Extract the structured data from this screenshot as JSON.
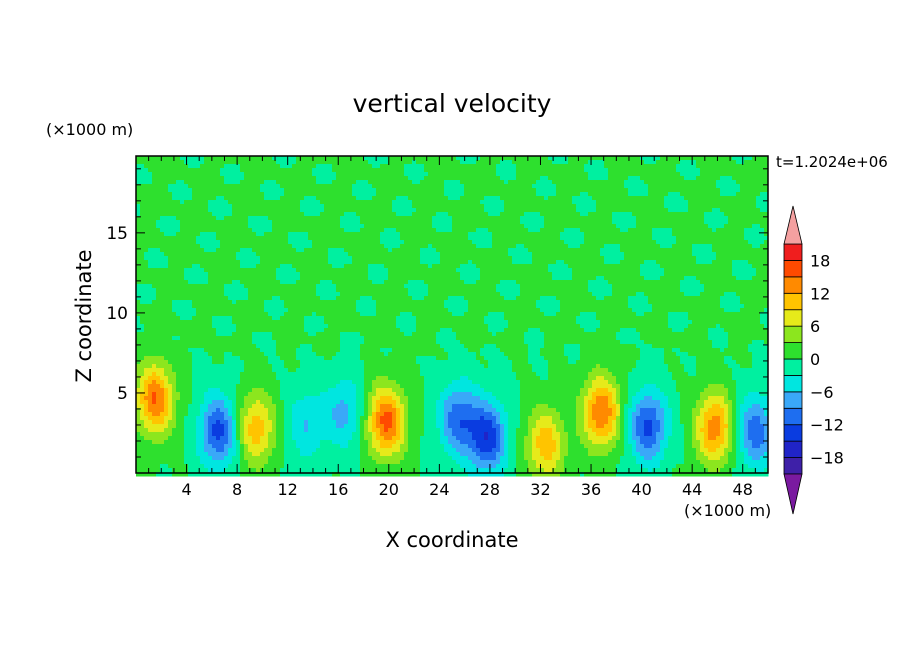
{
  "chart_data": {
    "type": "heatmap",
    "title": "vertical velocity",
    "xlabel": "X coordinate",
    "ylabel": "Z coordinate",
    "x_unit": "(×1000 m)",
    "y_unit": "(×1000 m)",
    "time_label": "t=1.2024e+06",
    "xlim": [
      0,
      50
    ],
    "ylim": [
      0,
      19.8
    ],
    "x_ticks": [
      "4",
      "8",
      "12",
      "16",
      "20",
      "24",
      "28",
      "32",
      "36",
      "40",
      "44",
      "48"
    ],
    "y_ticks": [
      "5",
      "10",
      "15"
    ],
    "colorbar_labels": [
      "18",
      "12",
      "6",
      "0",
      "−6",
      "−12",
      "−18"
    ],
    "colorbar_levels": [
      -21,
      -18,
      -15,
      -12,
      -9,
      -6,
      -3,
      0,
      3,
      6,
      9,
      12,
      15,
      18,
      21
    ],
    "colors": [
      "#7a1aa0",
      "#3e20a8",
      "#2024c8",
      "#0a3ce0",
      "#1e6ef0",
      "#3aa8f8",
      "#00e6e0",
      "#00f0a0",
      "#2ee02e",
      "#8ce61e",
      "#e6ea1a",
      "#ffc400",
      "#ff8a00",
      "#ff4a00",
      "#f01e1e",
      "#f4a0a0"
    ],
    "features": [
      {
        "x": 1.5,
        "z": 4.6,
        "w": 15
      },
      {
        "x": 6.5,
        "z": 2.6,
        "w": -13
      },
      {
        "x": 9.5,
        "z": 2.8,
        "w": 11
      },
      {
        "x": 13.5,
        "z": 3.0,
        "w": -6
      },
      {
        "x": 16.5,
        "z": 3.8,
        "w": -7
      },
      {
        "x": 19.8,
        "z": 3.2,
        "w": 16
      },
      {
        "x": 25.5,
        "z": 3.4,
        "w": -11
      },
      {
        "x": 27.8,
        "z": 2.2,
        "w": -14
      },
      {
        "x": 32.4,
        "z": 1.8,
        "w": 11
      },
      {
        "x": 36.8,
        "z": 3.8,
        "w": 15
      },
      {
        "x": 40.5,
        "z": 2.9,
        "w": -13
      },
      {
        "x": 45.8,
        "z": 2.8,
        "w": 14
      },
      {
        "x": 49.0,
        "z": 2.6,
        "w": -11
      }
    ]
  }
}
